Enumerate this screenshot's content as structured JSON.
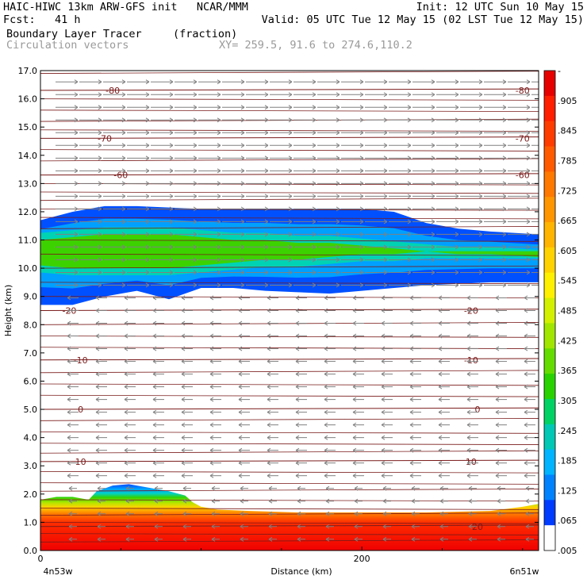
{
  "header": {
    "left_line1": "HAIC-HIWC 13km ARW-GFS init   NCAR/MMM",
    "left_line2": "Fcst:   41 h",
    "right_line1": "Init: 12 UTC Sun 10 May 15",
    "right_line2": "Valid: 05 UTC Tue 12 May 15 (02 LST Tue 12 May 15)",
    "field_name": "Boundary Layer Tracer",
    "field_units": "(fraction)",
    "vector_label": "Circulation vectors",
    "xy_label": "XY= 259.5, 91.6 to 274.6,110.2"
  },
  "chart_data": {
    "type": "heatmap",
    "title": "Boundary Layer Tracer",
    "xlabel": "Distance (km)",
    "ylabel": "Height (km)",
    "xlim": [
      0,
      310
    ],
    "ylim": [
      0,
      17
    ],
    "x_ticks": [
      {
        "value": 0,
        "label": "0"
      },
      {
        "value": 200,
        "label": "200"
      }
    ],
    "x_end_labels": {
      "left": "4n53w",
      "right": "6n51w"
    },
    "y_ticks": [
      "0.0",
      "1.0",
      "2.0",
      "3.0",
      "4.0",
      "5.0",
      "6.0",
      "7.0",
      "8.0",
      "9.0",
      "10.0",
      "11.0",
      "12.0",
      "13.0",
      "14.0",
      "15.0",
      "16.0",
      "17.0"
    ],
    "colorbar": {
      "labels": [
        "-",
        ".905",
        ".845",
        ".785",
        ".725",
        ".665",
        ".605",
        ".545",
        ".485",
        ".425",
        ".365",
        ".305",
        ".245",
        ".185",
        ".125",
        ".065",
        ".005"
      ],
      "colors": [
        "#e60000",
        "#ff1e00",
        "#ff3c00",
        "#ff5a00",
        "#ff7800",
        "#ff9600",
        "#ffb400",
        "#ffd200",
        "#fff000",
        "#d2f000",
        "#a0e600",
        "#64dc00",
        "#28d200",
        "#00d264",
        "#00c8b4",
        "#00b4ff",
        "#0082ff",
        "#003cff",
        "#ffffff"
      ]
    },
    "upper_layer": {
      "x": [
        0,
        20,
        40,
        60,
        80,
        100,
        120,
        140,
        160,
        180,
        200,
        220,
        240,
        260,
        280,
        310
      ],
      "top_km": [
        11.7,
        12.0,
        12.2,
        12.2,
        12.15,
        12.1,
        12.1,
        12.1,
        12.1,
        12.1,
        12.1,
        12.0,
        11.6,
        11.4,
        11.3,
        11.2
      ],
      "bottom_km": [
        8.7,
        8.7,
        9.0,
        9.2,
        8.9,
        9.3,
        9.3,
        9.2,
        9.15,
        9.1,
        9.2,
        9.3,
        9.4,
        9.45,
        9.5,
        9.5
      ],
      "core_top_km": [
        11.0,
        11.1,
        11.2,
        11.2,
        11.2,
        11.1,
        11.0,
        11.0,
        10.9,
        10.9,
        10.8,
        10.7,
        10.6,
        10.5,
        10.5,
        10.4
      ],
      "core_bottom_km": [
        10.1,
        10.0,
        10.0,
        10.0,
        10.0,
        10.1,
        10.2,
        10.3,
        10.3,
        10.4,
        10.5,
        10.5,
        10.6,
        10.6,
        10.6,
        10.6
      ]
    },
    "boundary_layer": {
      "x": [
        0,
        10,
        20,
        30,
        35,
        45,
        55,
        70,
        80,
        90,
        95,
        100,
        110,
        130,
        160,
        200,
        240,
        280,
        300,
        310
      ],
      "top_km": [
        1.8,
        1.9,
        1.9,
        1.8,
        2.1,
        2.3,
        2.35,
        2.2,
        2.1,
        1.95,
        1.7,
        1.55,
        1.45,
        1.4,
        1.35,
        1.35,
        1.35,
        1.4,
        1.55,
        1.65
      ]
    },
    "isotherm_labels_c": [
      "-80",
      "-70",
      "-60",
      "-20",
      "-10",
      "0",
      "10",
      "20"
    ]
  }
}
